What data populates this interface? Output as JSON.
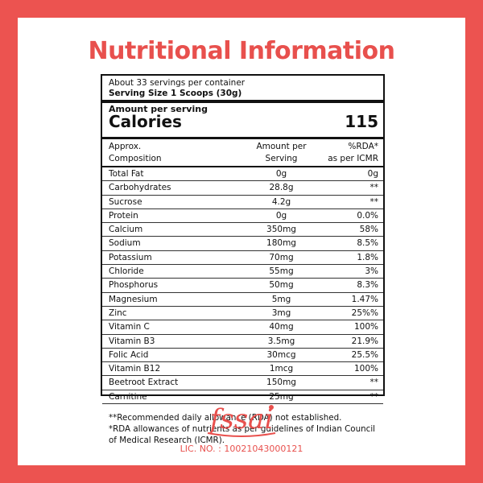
{
  "title": "Nutritional Information",
  "servings": {
    "per_container": "About 33 servings per container",
    "size": "Serving Size  1 Scoops (30g)"
  },
  "amount_per_serving": "Amount per serving",
  "calories": {
    "label": "Calories",
    "value": "115"
  },
  "headers": {
    "col1_line1": "Approx.",
    "col1_line2": "Composition",
    "col2_line1": "Amount per",
    "col2_line2": "Serving",
    "col3_line1": "%RDA*",
    "col3_line2": "as per ICMR"
  },
  "rows": [
    {
      "name": "Total Fat",
      "amount": "0g",
      "rda": "0g"
    },
    {
      "name": "Carbohydrates",
      "amount": "28.8g",
      "rda": "**"
    },
    {
      "name": "Sucrose",
      "amount": "4.2g",
      "rda": "**"
    },
    {
      "name": "Protein",
      "amount": "0g",
      "rda": "0.0%"
    },
    {
      "name": "Calcium",
      "amount": "350mg",
      "rda": "58%"
    },
    {
      "name": "Sodium",
      "amount": "180mg",
      "rda": "8.5%"
    },
    {
      "name": "Potassium",
      "amount": "70mg",
      "rda": "1.8%"
    },
    {
      "name": "Chloride",
      "amount": "55mg",
      "rda": "3%"
    },
    {
      "name": "Phosphorus",
      "amount": "50mg",
      "rda": "8.3%"
    },
    {
      "name": "Magnesium",
      "amount": "5mg",
      "rda": "1.47%"
    },
    {
      "name": "Zinc",
      "amount": "3mg",
      "rda": "25%%"
    },
    {
      "name": "Vitamin C",
      "amount": "40mg",
      "rda": "100%"
    },
    {
      "name": "Vitamin B3",
      "amount": "3.5mg",
      "rda": "21.9%"
    },
    {
      "name": "Folic Acid",
      "amount": "30mcg",
      "rda": "25.5%"
    },
    {
      "name": "Vitamin B12",
      "amount": "1mcg",
      "rda": "100%"
    },
    {
      "name": "Beetroot Extract",
      "amount": "150mg",
      "rda": "**"
    },
    {
      "name": "Carnitine",
      "amount": "25mg",
      "rda": "**"
    }
  ],
  "notes": {
    "line1": "**Recommended daily allowance (RDA) not established.",
    "line2": "*RDA allowances of nutrients as per guidelines of Indian Council of Medical Research (ICMR)."
  },
  "logo": {
    "text": "fssai"
  },
  "license": "LIC. NO. : 10021043000121",
  "colors": {
    "brand": "#e8504d",
    "border": "#ec5350",
    "ink": "#111111"
  }
}
